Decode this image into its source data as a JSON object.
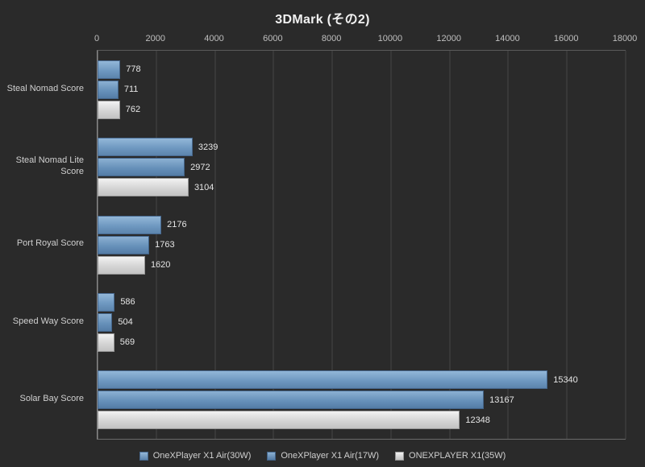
{
  "title": "3DMark (その2)",
  "chart_data": {
    "type": "bar",
    "orientation": "horizontal",
    "title": "3DMark (その2)",
    "xlim": [
      0,
      18000
    ],
    "xticks": [
      0,
      2000,
      4000,
      6000,
      8000,
      10000,
      12000,
      14000,
      16000,
      18000
    ],
    "grid": true,
    "legend_position": "bottom",
    "categories": [
      "Steal Nomad Score",
      "Steal Nomad Lite Score",
      "Port Royal Score",
      "Speed Way Score",
      "Solar Bay Score"
    ],
    "series": [
      {
        "name": "OneXPlayer X1 Air(30W)",
        "color_light": "#93b7d8",
        "color": "#6f99c1",
        "color_dark": "#5c84ad",
        "border": "#47688e",
        "values": [
          778,
          3239,
          2176,
          586,
          15340
        ]
      },
      {
        "name": "OneXPlayer X1 Air(17W)",
        "color_light": "#8cb0d2",
        "color": "#6791ba",
        "color_dark": "#547ca6",
        "border": "#426388",
        "values": [
          711,
          2972,
          1763,
          504,
          13167
        ]
      },
      {
        "name": "ONEXPLAYER X1(35W)",
        "color_light": "#f2f2f2",
        "color": "#d5d5d5",
        "color_dark": "#c2c2c2",
        "border": "#969696",
        "values": [
          762,
          3104,
          1620,
          569,
          12348
        ]
      }
    ],
    "colors": {
      "background": "#2a2a2a",
      "gridline": "#474747",
      "axis": "#8a8a8a",
      "text": "#d0d0d0"
    }
  }
}
